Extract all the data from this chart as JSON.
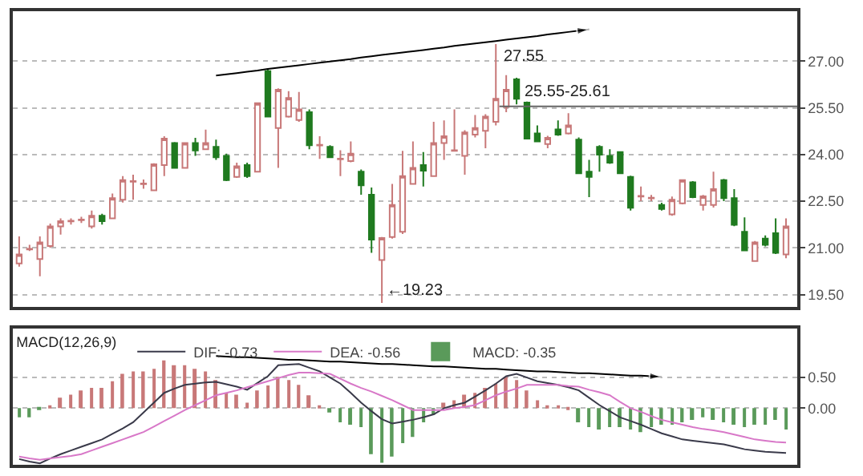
{
  "chart_data": [
    {
      "type": "candlestick",
      "categories": [
        null,
        null,
        null,
        null,
        null,
        null,
        null,
        null,
        null,
        null,
        null,
        null,
        null,
        null,
        null,
        null,
        null,
        null,
        null,
        null,
        null,
        null,
        null,
        null,
        null,
        null,
        null,
        null,
        null,
        null,
        null,
        null,
        null,
        null,
        null,
        null,
        null,
        null,
        null,
        null,
        null,
        null,
        null,
        null,
        null,
        null,
        null,
        null,
        null,
        null,
        null,
        null,
        null,
        null,
        null,
        null,
        null,
        null,
        null,
        null,
        null,
        null,
        null,
        null,
        null,
        null,
        null,
        null,
        null,
        null,
        null,
        null,
        null,
        null,
        null
      ],
      "ohlc": [
        [
          20.5,
          21.37,
          20.4,
          20.79
        ],
        [
          20.95,
          21.1,
          20.9,
          20.97
        ],
        [
          20.64,
          21.37,
          20.09,
          21.18
        ],
        [
          21.06,
          21.78,
          21.0,
          21.69
        ],
        [
          21.69,
          21.95,
          21.43,
          21.86
        ],
        [
          21.85,
          21.95,
          21.75,
          21.87
        ],
        [
          21.89,
          22.0,
          21.8,
          21.91
        ],
        [
          21.69,
          22.2,
          21.62,
          22.03
        ],
        [
          22.03,
          22.1,
          21.75,
          21.86
        ],
        [
          21.95,
          22.75,
          21.93,
          22.6
        ],
        [
          22.55,
          23.31,
          22.46,
          23.18
        ],
        [
          23.13,
          23.35,
          22.55,
          23.15
        ],
        [
          23.05,
          23.2,
          22.9,
          23.07
        ],
        [
          22.85,
          23.72,
          22.85,
          23.69
        ],
        [
          23.66,
          24.59,
          23.31,
          24.51
        ],
        [
          24.37,
          24.4,
          23.57,
          23.57
        ],
        [
          23.57,
          24.37,
          23.57,
          24.37
        ],
        [
          24.37,
          24.54,
          23.96,
          24.13
        ],
        [
          24.17,
          24.8,
          24.15,
          24.37
        ],
        [
          24.25,
          24.48,
          23.83,
          23.91
        ],
        [
          23.96,
          24.03,
          23.15,
          23.18
        ],
        [
          23.28,
          23.74,
          23.25,
          23.62
        ],
        [
          23.66,
          23.74,
          23.25,
          23.31
        ],
        [
          23.45,
          25.65,
          23.45,
          25.65
        ],
        [
          26.68,
          26.73,
          25.22,
          25.22
        ],
        [
          24.85,
          26.13,
          23.57,
          26.08
        ],
        [
          25.22,
          26.04,
          25.19,
          25.82
        ],
        [
          25.11,
          26.01,
          25.05,
          25.45
        ],
        [
          25.36,
          25.45,
          24.17,
          24.3
        ],
        [
          24.29,
          24.59,
          23.86,
          24.31
        ],
        [
          24.25,
          24.3,
          23.91,
          23.91
        ],
        [
          23.85,
          24.14,
          23.31,
          23.87
        ],
        [
          23.79,
          24.42,
          23.75,
          24.03
        ],
        [
          23.45,
          23.52,
          22.71,
          23.01
        ],
        [
          22.71,
          22.94,
          20.84,
          21.27
        ],
        [
          20.61,
          21.35,
          19.23,
          21.32
        ],
        [
          21.35,
          23.06,
          21.3,
          22.38
        ],
        [
          21.52,
          24.12,
          21.45,
          23.31
        ],
        [
          23.06,
          24.42,
          23.06,
          23.57
        ],
        [
          23.66,
          24.08,
          22.97,
          23.48
        ],
        [
          23.31,
          25.05,
          23.28,
          24.37
        ],
        [
          24.37,
          25.1,
          23.83,
          24.59
        ],
        [
          24.12,
          25.45,
          24.1,
          24.14
        ],
        [
          23.96,
          24.78,
          23.35,
          24.71
        ],
        [
          24.64,
          25.27,
          24.55,
          24.85
        ],
        [
          24.76,
          25.3,
          24.2,
          25.22
        ],
        [
          25.05,
          27.55,
          24.94,
          25.79
        ],
        [
          25.53,
          26.55,
          25.36,
          26.08
        ],
        [
          26.42,
          26.47,
          25.61,
          25.79
        ],
        [
          25.67,
          25.7,
          24.51,
          24.51
        ],
        [
          24.68,
          24.94,
          24.4,
          24.42
        ],
        [
          24.34,
          24.6,
          24.2,
          24.54
        ],
        [
          24.81,
          25.1,
          24.6,
          24.64
        ],
        [
          24.68,
          25.33,
          24.65,
          24.94
        ],
        [
          24.48,
          24.55,
          23.4,
          23.4
        ],
        [
          23.45,
          23.83,
          22.63,
          23.28
        ],
        [
          24.25,
          24.3,
          23.45,
          24.0
        ],
        [
          23.96,
          24.17,
          23.7,
          23.74
        ],
        [
          24.08,
          24.1,
          23.4,
          23.4
        ],
        [
          23.28,
          23.32,
          22.2,
          22.29
        ],
        [
          22.65,
          22.97,
          22.5,
          22.67
        ],
        [
          22.59,
          22.7,
          22.5,
          22.61
        ],
        [
          22.38,
          22.45,
          22.2,
          22.25
        ],
        [
          22.08,
          22.65,
          22.03,
          22.55
        ],
        [
          22.43,
          23.2,
          22.4,
          23.18
        ],
        [
          23.11,
          23.15,
          22.6,
          22.63
        ],
        [
          22.38,
          22.7,
          22.2,
          22.66
        ],
        [
          22.38,
          23.45,
          22.3,
          22.89
        ],
        [
          23.18,
          23.22,
          22.5,
          22.6
        ],
        [
          22.6,
          22.89,
          21.7,
          21.74
        ],
        [
          21.52,
          21.98,
          20.9,
          20.92
        ],
        [
          20.58,
          21.22,
          20.55,
          21.18
        ],
        [
          21.3,
          21.4,
          21.05,
          21.1
        ],
        [
          21.47,
          21.95,
          20.8,
          20.84
        ],
        [
          20.79,
          21.95,
          20.67,
          21.69
        ]
      ],
      "series": [
        {
          "type": "line",
          "color": "#000000",
          "values": [
            null,
            null,
            null,
            null,
            null,
            null,
            null,
            null,
            null,
            null,
            null,
            null,
            null,
            null,
            null,
            null,
            null,
            null,
            null,
            26.54,
            26.58,
            26.62,
            26.66,
            26.7,
            26.75,
            26.79,
            26.83,
            26.87,
            26.91,
            26.95,
            26.99,
            27.03,
            27.07,
            27.12,
            27.16,
            27.2,
            27.24,
            27.28,
            27.32,
            27.36,
            27.4,
            27.44,
            27.49,
            27.53,
            27.57,
            27.61,
            27.65,
            27.69,
            27.73,
            27.77,
            27.81,
            27.86,
            27.9,
            27.94,
            27.98,
            28.02,
            null,
            null,
            null,
            null,
            null,
            null,
            null,
            null,
            null,
            null,
            null,
            null,
            null,
            null,
            null,
            null,
            null,
            null,
            null
          ]
        }
      ],
      "ylim": [
        19.1,
        28.6
      ],
      "yticks": [
        {
          "value": 19.5,
          "label": "19.50"
        },
        {
          "value": 21,
          "label": "21.00"
        },
        {
          "value": 22.5,
          "label": "22.50"
        },
        {
          "value": 24,
          "label": "24.00"
        },
        {
          "value": 25.5,
          "label": "25.50"
        },
        {
          "value": 27,
          "label": "27.00"
        }
      ],
      "ref_lines": [
        {
          "axis": "y",
          "value": 25.55,
          "color": "#666666"
        }
      ],
      "annotations": [
        {
          "text": "27.55",
          "y": 27.55
        },
        {
          "text": "25.55-25.61",
          "y": 25.61
        },
        "←19.23"
      ],
      "grid": "y",
      "tick_labels": "y",
      "legend": false
    },
    {
      "type": "bar",
      "legend_title": "MACD(12,26,9)",
      "categories": [
        null,
        null,
        null,
        null,
        null,
        null,
        null,
        null,
        null,
        null,
        null,
        null,
        null,
        null,
        null,
        null,
        null,
        null,
        null,
        null,
        null,
        null,
        null,
        null,
        null,
        null,
        null,
        null,
        null,
        null,
        null,
        null,
        null,
        null,
        null,
        null,
        null,
        null,
        null,
        null,
        null,
        null,
        null,
        null,
        null,
        null,
        null,
        null,
        null,
        null,
        null,
        null,
        null,
        null,
        null,
        null,
        null,
        null,
        null,
        null,
        null,
        null,
        null,
        null,
        null,
        null,
        null,
        null,
        null,
        null,
        null,
        null,
        null,
        null,
        null
      ],
      "series": [
        {
          "type": "line",
          "name": "DIF: -0.73",
          "color": "#3a3a4a",
          "values": [
            -0.83,
            -0.87,
            -0.9,
            -0.82,
            -0.75,
            -0.69,
            -0.63,
            -0.57,
            -0.51,
            -0.42,
            -0.33,
            -0.23,
            -0.07,
            0.09,
            0.25,
            0.32,
            0.38,
            0.4,
            0.42,
            0.43,
            0.39,
            0.35,
            0.3,
            0.41,
            0.52,
            0.7,
            0.71,
            0.72,
            0.66,
            0.6,
            0.5,
            0.4,
            0.25,
            0.09,
            -0.05,
            -0.18,
            -0.25,
            -0.22,
            -0.19,
            -0.15,
            -0.1,
            0.0,
            0.05,
            0.09,
            0.19,
            0.29,
            0.4,
            0.52,
            0.56,
            0.5,
            0.44,
            0.41,
            0.38,
            0.34,
            0.29,
            0.17,
            0.05,
            -0.05,
            -0.15,
            -0.21,
            -0.27,
            -0.34,
            -0.41,
            -0.46,
            -0.51,
            -0.53,
            -0.55,
            -0.57,
            -0.59,
            -0.63,
            -0.67,
            -0.69,
            -0.71,
            -0.72,
            -0.73
          ]
        },
        {
          "type": "line",
          "name": "DEA: -0.56",
          "color": "#d878c8",
          "values": [
            -0.79,
            -0.82,
            -0.84,
            -0.82,
            -0.8,
            -0.78,
            -0.75,
            -0.69,
            -0.63,
            -0.57,
            -0.51,
            -0.45,
            -0.39,
            -0.3,
            -0.21,
            -0.12,
            -0.03,
            0.05,
            0.13,
            0.21,
            0.25,
            0.29,
            0.34,
            0.39,
            0.44,
            0.49,
            0.54,
            0.58,
            0.58,
            0.57,
            0.56,
            0.48,
            0.4,
            0.33,
            0.27,
            0.2,
            0.13,
            0.05,
            -0.03,
            -0.03,
            -0.03,
            -0.03,
            0.0,
            0.02,
            0.05,
            0.13,
            0.21,
            0.27,
            0.32,
            0.38,
            0.38,
            0.38,
            0.38,
            0.36,
            0.35,
            0.3,
            0.26,
            0.21,
            0.1,
            0.0,
            -0.06,
            -0.13,
            -0.19,
            -0.23,
            -0.27,
            -0.31,
            -0.34,
            -0.36,
            -0.39,
            -0.43,
            -0.47,
            -0.51,
            -0.53,
            -0.55,
            -0.56
          ]
        },
        {
          "type": "bar",
          "name": "MACD: -0.35",
          "color": "#aaaaaa",
          "colors": [
            "#5a9a5a",
            "#5a9a5a",
            "#5a9a5a",
            "#c87878",
            "#c87878",
            "#c87878",
            "#c87878",
            "#c87878",
            "#c87878",
            "#c87878",
            "#c87878",
            "#c87878",
            "#c87878",
            "#c87878",
            "#c87878",
            "#c87878",
            "#c87878",
            "#c87878",
            "#c87878",
            "#c87878",
            "#c87878",
            "#c87878",
            "#c87878",
            "#c87878",
            "#c87878",
            "#c87878",
            "#c87878",
            "#c87878",
            "#c87878",
            "#c87878",
            "#5a9a5a",
            "#5a9a5a",
            "#5a9a5a",
            "#5a9a5a",
            "#5a9a5a",
            "#5a9a5a",
            "#5a9a5a",
            "#5a9a5a",
            "#5a9a5a",
            "#5a9a5a",
            "#5a9a5a",
            "#c87878",
            "#c87878",
            "#c87878",
            "#c87878",
            "#c87878",
            "#c87878",
            "#c87878",
            "#c87878",
            "#c87878",
            "#c87878",
            "#c87878",
            "#c87878",
            "#c87878",
            "#5a9a5a",
            "#5a9a5a",
            "#5a9a5a",
            "#5a9a5a",
            "#5a9a5a",
            "#5a9a5a",
            "#5a9a5a",
            "#5a9a5a",
            "#5a9a5a",
            "#5a9a5a",
            "#5a9a5a",
            "#5a9a5a",
            "#5a9a5a",
            "#5a9a5a",
            "#5a9a5a",
            "#5a9a5a",
            "#5a9a5a",
            "#5a9a5a",
            "#5a9a5a",
            "#5a9a5a",
            "#5a9a5a"
          ],
          "values": [
            -0.15,
            -0.15,
            -0.03,
            0.02,
            0.17,
            0.22,
            0.29,
            0.33,
            0.33,
            0.44,
            0.56,
            0.6,
            0.6,
            0.64,
            0.78,
            0.7,
            0.7,
            0.64,
            0.6,
            0.46,
            0.25,
            0.22,
            0.09,
            0.29,
            0.37,
            0.51,
            0.46,
            0.38,
            0.21,
            0.02,
            -0.07,
            -0.23,
            -0.27,
            -0.31,
            -0.75,
            -0.89,
            -0.79,
            -0.57,
            -0.47,
            -0.23,
            -0.11,
            0.09,
            0.13,
            0.22,
            0.25,
            0.33,
            0.4,
            0.51,
            0.46,
            0.29,
            0.13,
            0.02,
            0.02,
            -0.02,
            -0.23,
            -0.31,
            -0.35,
            -0.31,
            -0.31,
            -0.35,
            -0.39,
            -0.31,
            -0.27,
            -0.27,
            -0.23,
            -0.19,
            -0.15,
            -0.19,
            -0.23,
            -0.27,
            -0.31,
            -0.27,
            -0.27,
            -0.19,
            -0.35
          ]
        },
        {
          "type": "line",
          "color": "#000000",
          "values": [
            null,
            null,
            null,
            null,
            null,
            null,
            null,
            null,
            null,
            null,
            null,
            null,
            null,
            null,
            null,
            null,
            null,
            null,
            null,
            0.85,
            0.84,
            0.83,
            0.83,
            0.82,
            0.81,
            0.8,
            0.79,
            0.79,
            0.78,
            0.77,
            0.76,
            0.76,
            0.75,
            0.74,
            0.73,
            0.72,
            0.72,
            0.71,
            0.7,
            0.69,
            0.68,
            0.68,
            0.67,
            0.66,
            0.65,
            0.64,
            0.64,
            0.63,
            0.62,
            0.61,
            0.6,
            0.6,
            0.59,
            0.58,
            0.57,
            0.57,
            0.56,
            0.55,
            0.54,
            0.53,
            0.53,
            0.52,
            0.51,
            null,
            null,
            null,
            null,
            null,
            null,
            null,
            null,
            null,
            null,
            null,
            null
          ]
        }
      ],
      "ylim": [
        -0.92,
        1.3
      ],
      "yticks": [
        {
          "value": 0,
          "label": "0.00"
        },
        {
          "value": 0.5,
          "label": "0.50"
        }
      ],
      "grid": "y",
      "tick_labels": "y",
      "legend": "top left"
    }
  ]
}
